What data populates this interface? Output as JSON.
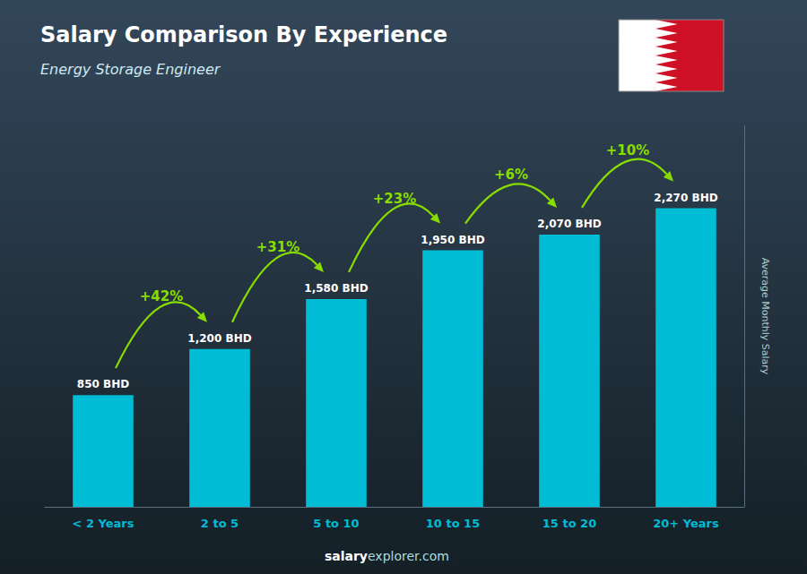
{
  "chart_data": {
    "type": "bar",
    "title": "Salary Comparison By Experience",
    "subtitle": "Energy Storage Engineer",
    "categories": [
      "< 2 Years",
      "2 to 5",
      "5 to 10",
      "10 to 15",
      "15 to 20",
      "20+ Years"
    ],
    "values": [
      850,
      1200,
      1580,
      1950,
      2070,
      2270
    ],
    "value_labels": [
      "850 BHD",
      "1,200 BHD",
      "1,580 BHD",
      "1,950 BHD",
      "2,070 BHD",
      "2,270 BHD"
    ],
    "data_labels": true,
    "annotations": [
      "+42%",
      "+31%",
      "+23%",
      "+6%",
      "+10%"
    ],
    "ylabel": "Average Monthly Salary",
    "footer": [
      "salary",
      "explorer.com"
    ],
    "color": "#00bcd4",
    "ylim": [
      0,
      2900
    ],
    "tick_labels": "x",
    "grid": false
  }
}
